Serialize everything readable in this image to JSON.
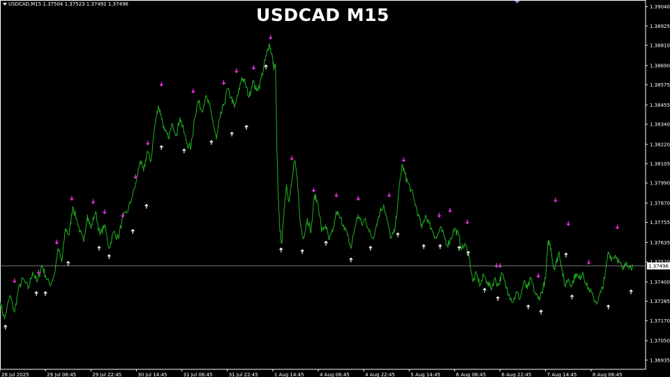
{
  "header": {
    "symbol_info": "USDCAD,M15  1.37504 1.37523 1.37492 1.37496",
    "title": "USDCAD M15"
  },
  "colors": {
    "background": "#000000",
    "price": "#1fa31f",
    "axis": "#ffffff",
    "current_line": "#a0a0a0",
    "current_label_bg": "#ffffff",
    "current_label_text": "#000000",
    "sell_arrow": "#ff33ff",
    "buy_arrow": "#ffffff"
  },
  "chart_data": {
    "type": "line",
    "symbol": "USDCAD",
    "timeframe": "M15",
    "current_price": "1.37496",
    "y_ticks": [
      "1.39040",
      "1.38925",
      "1.38810",
      "1.38690",
      "1.38575",
      "1.38455",
      "1.38340",
      "1.38220",
      "1.38105",
      "1.37990",
      "1.37870",
      "1.37755",
      "1.37635",
      "1.37520",
      "1.37400",
      "1.37285",
      "1.37170",
      "1.37050",
      "1.36935"
    ],
    "ylim": [
      1.3688,
      1.3908
    ],
    "x_ticks": [
      "28 Jul 2025",
      "29 Jul 06:45",
      "29 Jul 22:45",
      "30 Jul 14:45",
      "31 Jul 06:45",
      "31 Jul 22:45",
      "1 Aug 14:45",
      "4 Aug 06:45",
      "4 Aug 22:45",
      "5 Aug 14:45",
      "6 Aug 06:45",
      "6 Aug 22:45",
      "7 Aug 14:45",
      "8 Aug 06:45"
    ],
    "x_range": [
      0,
      14.2
    ],
    "series": [
      {
        "points": [
          [
            0.0,
            1.3728
          ],
          [
            0.1,
            1.3718
          ],
          [
            0.22,
            1.3732
          ],
          [
            0.32,
            1.3722
          ],
          [
            0.4,
            1.3735
          ],
          [
            0.5,
            1.3742
          ],
          [
            0.62,
            1.3736
          ],
          [
            0.72,
            1.3746
          ],
          [
            0.82,
            1.374
          ],
          [
            0.92,
            1.375
          ],
          [
            1.0,
            1.3744
          ],
          [
            1.1,
            1.3738
          ],
          [
            1.2,
            1.3745
          ],
          [
            1.28,
            1.376
          ],
          [
            1.36,
            1.3752
          ],
          [
            1.44,
            1.3772
          ],
          [
            1.52,
            1.3768
          ],
          [
            1.6,
            1.3785
          ],
          [
            1.68,
            1.3778
          ],
          [
            1.76,
            1.377
          ],
          [
            1.84,
            1.3764
          ],
          [
            1.92,
            1.378
          ],
          [
            2.0,
            1.3772
          ],
          [
            2.1,
            1.3782
          ],
          [
            2.2,
            1.3768
          ],
          [
            2.3,
            1.3774
          ],
          [
            2.4,
            1.376
          ],
          [
            2.5,
            1.377
          ],
          [
            2.6,
            1.3766
          ],
          [
            2.7,
            1.3778
          ],
          [
            2.8,
            1.3782
          ],
          [
            2.9,
            1.379
          ],
          [
            3.0,
            1.38
          ],
          [
            3.08,
            1.3812
          ],
          [
            3.16,
            1.3806
          ],
          [
            3.24,
            1.3818
          ],
          [
            3.32,
            1.3812
          ],
          [
            3.4,
            1.3832
          ],
          [
            3.48,
            1.3845
          ],
          [
            3.54,
            1.384
          ],
          [
            3.62,
            1.383
          ],
          [
            3.7,
            1.3826
          ],
          [
            3.8,
            1.3834
          ],
          [
            3.88,
            1.3828
          ],
          [
            3.96,
            1.3838
          ],
          [
            4.04,
            1.383
          ],
          [
            4.12,
            1.3822
          ],
          [
            4.2,
            1.382
          ],
          [
            4.28,
            1.3838
          ],
          [
            4.36,
            1.3848
          ],
          [
            4.44,
            1.3842
          ],
          [
            4.52,
            1.385
          ],
          [
            4.6,
            1.3846
          ],
          [
            4.68,
            1.3836
          ],
          [
            4.76,
            1.3825
          ],
          [
            4.84,
            1.3838
          ],
          [
            4.92,
            1.3845
          ],
          [
            5.0,
            1.3855
          ],
          [
            5.08,
            1.385
          ],
          [
            5.16,
            1.3844
          ],
          [
            5.24,
            1.3852
          ],
          [
            5.32,
            1.3862
          ],
          [
            5.4,
            1.3858
          ],
          [
            5.48,
            1.385
          ],
          [
            5.56,
            1.386
          ],
          [
            5.64,
            1.3854
          ],
          [
            5.72,
            1.3858
          ],
          [
            5.8,
            1.3868
          ],
          [
            5.86,
            1.3875
          ],
          [
            5.92,
            1.3882
          ],
          [
            5.98,
            1.3876
          ],
          [
            6.02,
            1.3868
          ],
          [
            6.06,
            1.3869
          ],
          [
            6.09,
            1.3821
          ],
          [
            6.12,
            1.379
          ],
          [
            6.16,
            1.377
          ],
          [
            6.2,
            1.3763
          ],
          [
            6.25,
            1.3784
          ],
          [
            6.3,
            1.3798
          ],
          [
            6.36,
            1.3788
          ],
          [
            6.42,
            1.38
          ],
          [
            6.48,
            1.3812
          ],
          [
            6.54,
            1.3802
          ],
          [
            6.6,
            1.3776
          ],
          [
            6.68,
            1.3766
          ],
          [
            6.76,
            1.3778
          ],
          [
            6.84,
            1.377
          ],
          [
            6.92,
            1.3792
          ],
          [
            7.0,
            1.3786
          ],
          [
            7.08,
            1.377
          ],
          [
            7.16,
            1.3774
          ],
          [
            7.24,
            1.3765
          ],
          [
            7.32,
            1.377
          ],
          [
            7.4,
            1.3782
          ],
          [
            7.48,
            1.3778
          ],
          [
            7.56,
            1.3774
          ],
          [
            7.64,
            1.3768
          ],
          [
            7.72,
            1.376
          ],
          [
            7.8,
            1.3772
          ],
          [
            7.88,
            1.378
          ],
          [
            7.96,
            1.3774
          ],
          [
            8.04,
            1.3778
          ],
          [
            8.12,
            1.377
          ],
          [
            8.2,
            1.3766
          ],
          [
            8.28,
            1.3774
          ],
          [
            8.36,
            1.3782
          ],
          [
            8.44,
            1.3786
          ],
          [
            8.52,
            1.3776
          ],
          [
            8.6,
            1.3766
          ],
          [
            8.68,
            1.377
          ],
          [
            8.76,
            1.379
          ],
          [
            8.84,
            1.381
          ],
          [
            8.9,
            1.3805
          ],
          [
            8.96,
            1.38
          ],
          [
            9.04,
            1.3795
          ],
          [
            9.12,
            1.3788
          ],
          [
            9.2,
            1.378
          ],
          [
            9.28,
            1.3772
          ],
          [
            9.36,
            1.378
          ],
          [
            9.44,
            1.3775
          ],
          [
            9.52,
            1.377
          ],
          [
            9.6,
            1.3766
          ],
          [
            9.68,
            1.3772
          ],
          [
            9.76,
            1.3768
          ],
          [
            9.84,
            1.3762
          ],
          [
            9.92,
            1.3766
          ],
          [
            10.0,
            1.3772
          ],
          [
            10.08,
            1.3768
          ],
          [
            10.16,
            1.376
          ],
          [
            10.24,
            1.3762
          ],
          [
            10.32,
            1.3755
          ],
          [
            10.4,
            1.374
          ],
          [
            10.48,
            1.3745
          ],
          [
            10.56,
            1.3738
          ],
          [
            10.64,
            1.3744
          ],
          [
            10.72,
            1.374
          ],
          [
            10.8,
            1.3736
          ],
          [
            10.88,
            1.3742
          ],
          [
            10.96,
            1.3738
          ],
          [
            11.04,
            1.3745
          ],
          [
            11.12,
            1.3738
          ],
          [
            11.2,
            1.3733
          ],
          [
            11.28,
            1.3728
          ],
          [
            11.36,
            1.3734
          ],
          [
            11.44,
            1.373
          ],
          [
            11.52,
            1.374
          ],
          [
            11.6,
            1.3736
          ],
          [
            11.68,
            1.3742
          ],
          [
            11.76,
            1.3734
          ],
          [
            11.84,
            1.373
          ],
          [
            11.92,
            1.3734
          ],
          [
            12.0,
            1.3742
          ],
          [
            12.06,
            1.3765
          ],
          [
            12.12,
            1.376
          ],
          [
            12.18,
            1.3748
          ],
          [
            12.24,
            1.3752
          ],
          [
            12.3,
            1.3758
          ],
          [
            12.36,
            1.3748
          ],
          [
            12.42,
            1.3738
          ],
          [
            12.5,
            1.3742
          ],
          [
            12.58,
            1.3738
          ],
          [
            12.66,
            1.3745
          ],
          [
            12.74,
            1.3742
          ],
          [
            12.82,
            1.3746
          ],
          [
            12.9,
            1.3738
          ],
          [
            12.98,
            1.3735
          ],
          [
            13.06,
            1.373
          ],
          [
            13.14,
            1.3728
          ],
          [
            13.22,
            1.3734
          ],
          [
            13.3,
            1.3742
          ],
          [
            13.38,
            1.3758
          ],
          [
            13.46,
            1.3754
          ],
          [
            13.54,
            1.3756
          ],
          [
            13.62,
            1.3752
          ],
          [
            13.7,
            1.3747
          ],
          [
            13.78,
            1.3752
          ],
          [
            13.86,
            1.3749
          ],
          [
            13.92,
            1.37496
          ]
        ]
      }
    ],
    "sell_signals": [
      [
        0.32,
        1.3741
      ],
      [
        0.85,
        1.3746
      ],
      [
        1.25,
        1.3764
      ],
      [
        1.58,
        1.379
      ],
      [
        2.05,
        1.3788
      ],
      [
        2.3,
        1.3782
      ],
      [
        2.7,
        1.378
      ],
      [
        2.98,
        1.3803
      ],
      [
        3.25,
        1.3823
      ],
      [
        3.55,
        1.3858
      ],
      [
        4.25,
        1.3854
      ],
      [
        4.92,
        1.3859
      ],
      [
        5.2,
        1.3866
      ],
      [
        5.58,
        1.3868
      ],
      [
        5.95,
        1.3886
      ],
      [
        6.42,
        1.3814
      ],
      [
        6.9,
        1.3795
      ],
      [
        7.4,
        1.3792
      ],
      [
        7.88,
        1.379
      ],
      [
        8.56,
        1.3792
      ],
      [
        8.88,
        1.3813
      ],
      [
        9.66,
        1.378
      ],
      [
        9.9,
        1.3783
      ],
      [
        10.28,
        1.3776
      ],
      [
        10.92,
        1.375
      ],
      [
        11.0,
        1.375
      ],
      [
        11.84,
        1.3744
      ],
      [
        12.22,
        1.3789
      ],
      [
        12.5,
        1.3775
      ],
      [
        12.95,
        1.3752
      ],
      [
        13.58,
        1.3773
      ]
    ],
    "buy_signals": [
      [
        0.12,
        1.3713
      ],
      [
        0.8,
        1.3733
      ],
      [
        1.0,
        1.3733
      ],
      [
        1.5,
        1.3751
      ],
      [
        2.18,
        1.376
      ],
      [
        2.4,
        1.3755
      ],
      [
        2.92,
        1.377
      ],
      [
        3.22,
        1.3785
      ],
      [
        3.55,
        1.382
      ],
      [
        4.05,
        1.3818
      ],
      [
        4.65,
        1.3823
      ],
      [
        5.1,
        1.3828
      ],
      [
        5.42,
        1.3832
      ],
      [
        5.85,
        1.3868
      ],
      [
        6.18,
        1.3759
      ],
      [
        6.65,
        1.3758
      ],
      [
        7.17,
        1.3763
      ],
      [
        7.72,
        1.3753
      ],
      [
        8.15,
        1.376
      ],
      [
        8.75,
        1.3768
      ],
      [
        9.32,
        1.3761
      ],
      [
        9.68,
        1.3761
      ],
      [
        10.1,
        1.376
      ],
      [
        10.3,
        1.3757
      ],
      [
        10.66,
        1.3735
      ],
      [
        10.95,
        1.373
      ],
      [
        11.62,
        1.3725
      ],
      [
        11.9,
        1.3722
      ],
      [
        12.45,
        1.3756
      ],
      [
        12.58,
        1.3731
      ],
      [
        13.38,
        1.3725
      ],
      [
        13.88,
        1.3734
      ]
    ]
  }
}
